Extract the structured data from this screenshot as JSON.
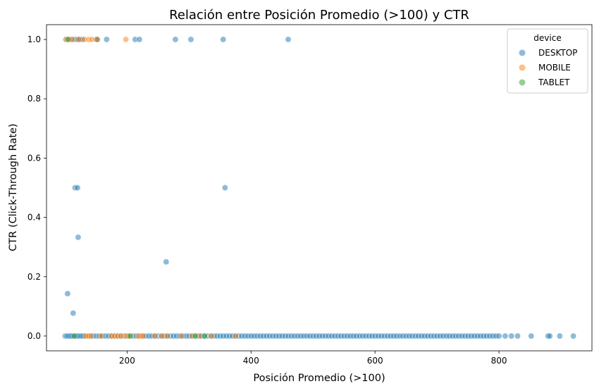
{
  "chart_data": {
    "type": "scatter",
    "title": "Relación entre Posición Promedio (>100) y CTR",
    "xlabel": "Posición Promedio (>100)",
    "ylabel": "CTR (Click-Through Rate)",
    "xlim": [
      70,
      950
    ],
    "ylim": [
      -0.05,
      1.05
    ],
    "xticks": [
      200,
      400,
      600,
      800
    ],
    "yticks": [
      0.0,
      0.2,
      0.4,
      0.6,
      0.8,
      1.0
    ],
    "xtick_labels": [
      "200",
      "400",
      "600",
      "800"
    ],
    "ytick_labels": [
      "0.0",
      "0.2",
      "0.4",
      "0.6",
      "0.8",
      "1.0"
    ],
    "grid": false,
    "legend": {
      "title": "device",
      "placement": "top-right"
    },
    "series": [
      {
        "name": "DESKTOP",
        "color": "#1f77b4",
        "points": [
          [
            101,
            1
          ],
          [
            104,
            1
          ],
          [
            108,
            1
          ],
          [
            112,
            1
          ],
          [
            116,
            1
          ],
          [
            120,
            1
          ],
          [
            124,
            1
          ],
          [
            128,
            1
          ],
          [
            150,
            1
          ],
          [
            152,
            1
          ],
          [
            167,
            1
          ],
          [
            213,
            1
          ],
          [
            220,
            1
          ],
          [
            278,
            1
          ],
          [
            303,
            1
          ],
          [
            355,
            1
          ],
          [
            460,
            1
          ],
          [
            358,
            0.5
          ],
          [
            116,
            0.5
          ],
          [
            120,
            0.5
          ],
          [
            121,
            0.333
          ],
          [
            263,
            0.25
          ],
          [
            104,
            0.143
          ],
          [
            113,
            0.077
          ],
          [
            100,
            0
          ],
          [
            103,
            0
          ],
          [
            106,
            0
          ],
          [
            109,
            0
          ],
          [
            112,
            0
          ],
          [
            115,
            0
          ],
          [
            118,
            0
          ],
          [
            121,
            0
          ],
          [
            124,
            0
          ],
          [
            127,
            0
          ],
          [
            130,
            0
          ],
          [
            135,
            0
          ],
          [
            140,
            0
          ],
          [
            145,
            0
          ],
          [
            150,
            0
          ],
          [
            155,
            0
          ],
          [
            160,
            0
          ],
          [
            165,
            0
          ],
          [
            170,
            0
          ],
          [
            175,
            0
          ],
          [
            180,
            0
          ],
          [
            185,
            0
          ],
          [
            190,
            0
          ],
          [
            195,
            0
          ],
          [
            200,
            0
          ],
          [
            205,
            0
          ],
          [
            210,
            0
          ],
          [
            215,
            0
          ],
          [
            220,
            0
          ],
          [
            225,
            0
          ],
          [
            230,
            0
          ],
          [
            235,
            0
          ],
          [
            240,
            0
          ],
          [
            245,
            0
          ],
          [
            250,
            0
          ],
          [
            255,
            0
          ],
          [
            260,
            0
          ],
          [
            265,
            0
          ],
          [
            270,
            0
          ],
          [
            275,
            0
          ],
          [
            280,
            0
          ],
          [
            285,
            0
          ],
          [
            290,
            0
          ],
          [
            295,
            0
          ],
          [
            300,
            0
          ],
          [
            305,
            0
          ],
          [
            310,
            0
          ],
          [
            315,
            0
          ],
          [
            320,
            0
          ],
          [
            325,
            0
          ],
          [
            330,
            0
          ],
          [
            335,
            0
          ],
          [
            340,
            0
          ],
          [
            345,
            0
          ],
          [
            350,
            0
          ],
          [
            355,
            0
          ],
          [
            360,
            0
          ],
          [
            365,
            0
          ],
          [
            370,
            0
          ],
          [
            375,
            0
          ],
          [
            380,
            0
          ],
          [
            385,
            0
          ],
          [
            390,
            0
          ],
          [
            395,
            0
          ],
          [
            400,
            0
          ],
          [
            405,
            0
          ],
          [
            410,
            0
          ],
          [
            415,
            0
          ],
          [
            420,
            0
          ],
          [
            425,
            0
          ],
          [
            430,
            0
          ],
          [
            435,
            0
          ],
          [
            440,
            0
          ],
          [
            445,
            0
          ],
          [
            450,
            0
          ],
          [
            455,
            0
          ],
          [
            460,
            0
          ],
          [
            465,
            0
          ],
          [
            470,
            0
          ],
          [
            475,
            0
          ],
          [
            480,
            0
          ],
          [
            485,
            0
          ],
          [
            490,
            0
          ],
          [
            495,
            0
          ],
          [
            500,
            0
          ],
          [
            505,
            0
          ],
          [
            510,
            0
          ],
          [
            515,
            0
          ],
          [
            520,
            0
          ],
          [
            525,
            0
          ],
          [
            530,
            0
          ],
          [
            535,
            0
          ],
          [
            540,
            0
          ],
          [
            545,
            0
          ],
          [
            550,
            0
          ],
          [
            555,
            0
          ],
          [
            560,
            0
          ],
          [
            565,
            0
          ],
          [
            570,
            0
          ],
          [
            575,
            0
          ],
          [
            580,
            0
          ],
          [
            585,
            0
          ],
          [
            590,
            0
          ],
          [
            595,
            0
          ],
          [
            600,
            0
          ],
          [
            605,
            0
          ],
          [
            610,
            0
          ],
          [
            615,
            0
          ],
          [
            620,
            0
          ],
          [
            625,
            0
          ],
          [
            630,
            0
          ],
          [
            635,
            0
          ],
          [
            640,
            0
          ],
          [
            645,
            0
          ],
          [
            650,
            0
          ],
          [
            655,
            0
          ],
          [
            660,
            0
          ],
          [
            665,
            0
          ],
          [
            670,
            0
          ],
          [
            675,
            0
          ],
          [
            680,
            0
          ],
          [
            685,
            0
          ],
          [
            690,
            0
          ],
          [
            695,
            0
          ],
          [
            700,
            0
          ],
          [
            705,
            0
          ],
          [
            710,
            0
          ],
          [
            715,
            0
          ],
          [
            720,
            0
          ],
          [
            725,
            0
          ],
          [
            730,
            0
          ],
          [
            735,
            0
          ],
          [
            740,
            0
          ],
          [
            745,
            0
          ],
          [
            750,
            0
          ],
          [
            755,
            0
          ],
          [
            760,
            0
          ],
          [
            765,
            0
          ],
          [
            770,
            0
          ],
          [
            775,
            0
          ],
          [
            780,
            0
          ],
          [
            785,
            0
          ],
          [
            790,
            0
          ],
          [
            795,
            0
          ],
          [
            800,
            0
          ],
          [
            810,
            0
          ],
          [
            820,
            0
          ],
          [
            830,
            0
          ],
          [
            852,
            0
          ],
          [
            879,
            0
          ],
          [
            882,
            0
          ],
          [
            898,
            0
          ],
          [
            920,
            0
          ]
        ]
      },
      {
        "name": "MOBILE",
        "color": "#ff7f0e",
        "points": [
          [
            102,
            1
          ],
          [
            107,
            1
          ],
          [
            111,
            1
          ],
          [
            122,
            1
          ],
          [
            131,
            1
          ],
          [
            138,
            1
          ],
          [
            143,
            1
          ],
          [
            152,
            1
          ],
          [
            198,
            1
          ],
          [
            133,
            0
          ],
          [
            138,
            0
          ],
          [
            142,
            0
          ],
          [
            158,
            0
          ],
          [
            175,
            0
          ],
          [
            180,
            0
          ],
          [
            185,
            0
          ],
          [
            190,
            0
          ],
          [
            198,
            0
          ],
          [
            202,
            0
          ],
          [
            218,
            0
          ],
          [
            222,
            0
          ],
          [
            226,
            0
          ],
          [
            245,
            0
          ],
          [
            256,
            0
          ],
          [
            265,
            0
          ],
          [
            288,
            0
          ],
          [
            305,
            0
          ],
          [
            318,
            0
          ],
          [
            336,
            0
          ],
          [
            375,
            0
          ]
        ]
      },
      {
        "name": "TABLET",
        "color": "#2ca02c",
        "points": [
          [
            105,
            1
          ],
          [
            115,
            0
          ],
          [
            205,
            0
          ],
          [
            310,
            0
          ],
          [
            325,
            0
          ]
        ]
      }
    ]
  }
}
